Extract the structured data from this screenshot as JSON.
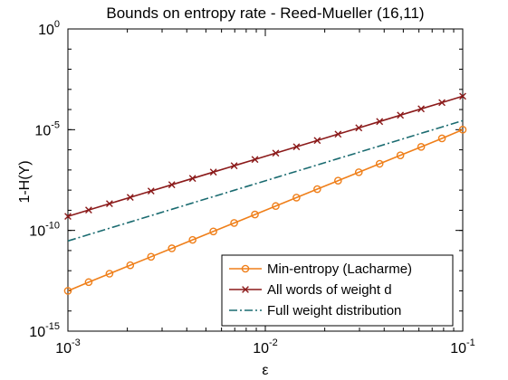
{
  "chart_data": {
    "type": "line",
    "title": "Bounds on entropy rate - Reed-Mueller (16,11)",
    "xlabel": "ε",
    "ylabel": "1-H(Y)",
    "xscale": "log",
    "yscale": "log",
    "xlim": [
      0.001,
      0.1
    ],
    "ylim": [
      1e-15,
      1
    ],
    "x_ticks": [
      {
        "base": "10",
        "exp": "-3",
        "value": 0.001
      },
      {
        "base": "10",
        "exp": "-2",
        "value": 0.01
      },
      {
        "base": "10",
        "exp": "-1",
        "value": 0.1
      }
    ],
    "y_ticks": [
      {
        "base": "10",
        "exp": "0",
        "value": 1
      },
      {
        "base": "10",
        "exp": "-5",
        "value": 1e-05
      },
      {
        "base": "10",
        "exp": "-10",
        "value": 1e-10
      },
      {
        "base": "10",
        "exp": "-15",
        "value": 1e-15
      }
    ],
    "grid": false,
    "legend_position": "bottom-right",
    "x": [
      0.001,
      0.001274,
      0.001624,
      0.002069,
      0.002637,
      0.00336,
      0.004281,
      0.005456,
      0.006952,
      0.008859,
      0.01129,
      0.01438,
      0.01833,
      0.02336,
      0.02976,
      0.03793,
      0.04833,
      0.06158,
      0.07848,
      0.1
    ],
    "series": [
      {
        "name": "Min-entropy (Lacharme)",
        "color": "#ef7f1a",
        "marker": "circle",
        "line": "solid",
        "values": [
          1e-13,
          2.7e-13,
          7.1e-13,
          1.87e-12,
          4.91e-12,
          1.29e-11,
          3.39e-11,
          8.91e-11,
          2.34e-10,
          6.15e-10,
          1.62e-09,
          4.25e-09,
          1.12e-08,
          2.94e-08,
          7.72e-08,
          2.03e-07,
          5.34e-07,
          1.4e-06,
          3.69e-06,
          1e-05
        ]
      },
      {
        "name": "All words of weight d",
        "color": "#8b1a1a",
        "marker": "x",
        "line": "solid",
        "values": [
          5e-10,
          1.03e-09,
          2.12e-09,
          4.37e-09,
          9e-09,
          1.85e-08,
          3.81e-08,
          7.86e-08,
          1.62e-07,
          3.33e-07,
          6.86e-07,
          1.41e-06,
          2.91e-06,
          5.99e-06,
          1.23e-05,
          2.54e-05,
          5.24e-05,
          0.000108,
          0.000222,
          0.000458
        ]
      },
      {
        "name": "Full weight distribution",
        "color": "#1a6b70",
        "marker": "none",
        "line": "dashdot",
        "values": [
          3e-11,
          6.2e-11,
          1.28e-10,
          2.63e-10,
          5.43e-10,
          1.12e-09,
          2.31e-09,
          4.76e-09,
          9.81e-09,
          2.02e-08,
          4.17e-08,
          8.6e-08,
          1.77e-07,
          3.66e-07,
          7.54e-07,
          1.55e-06,
          3.2e-06,
          6.61e-06,
          1.36e-05,
          2.8e-05
        ]
      }
    ]
  }
}
